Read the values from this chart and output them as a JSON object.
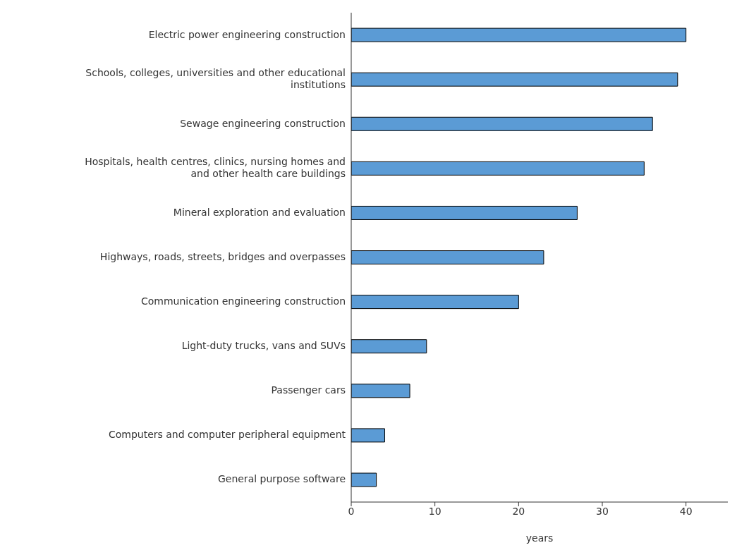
{
  "chart_data": {
    "type": "bar",
    "orientation": "horizontal",
    "xlabel": "years",
    "categories": [
      "Electric power engineering construction",
      "Schools, colleges, universities and other educational institutions",
      "Sewage engineering construction",
      "Hospitals, health centres, clinics, nursing homes and and other health care buildings",
      "Mineral exploration and evaluation",
      "Highways, roads, streets, bridges and overpasses",
      "Communication engineering construction",
      "Light-duty trucks, vans and SUVs",
      "Passenger cars",
      "Computers and computer peripheral equipment",
      "General purpose software"
    ],
    "values": [
      40,
      39,
      36,
      35,
      27,
      23,
      20,
      9,
      7,
      4,
      3
    ],
    "color": "#5b9bd5",
    "xlim": [
      0,
      45
    ],
    "xticks": [
      0,
      10,
      20,
      30,
      40
    ],
    "grid": false,
    "legend": false
  }
}
